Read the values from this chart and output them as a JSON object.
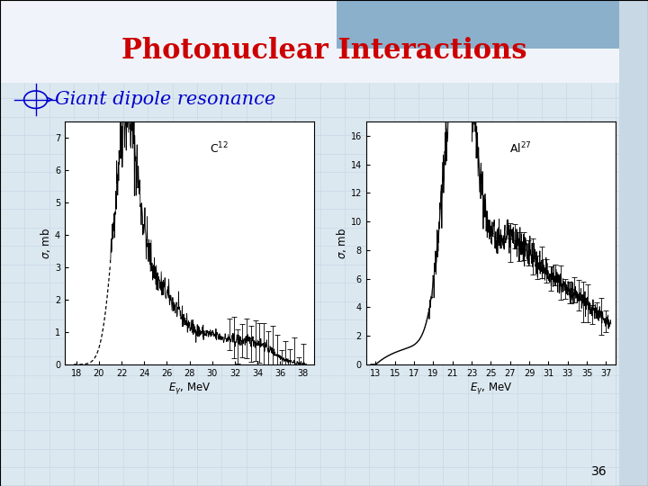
{
  "title": "Photonuclear Interactions",
  "title_color": "#CC0000",
  "title_fontsize": 22,
  "bullet_text": "Giant dipole resonance",
  "bullet_color": "#0000CC",
  "bullet_fontsize": 15,
  "page_number": "36",
  "left_plot_label": "C$^{12}$",
  "right_plot_label": "Al$^{27}$",
  "left_xlabel": "$E_{\\gamma}$, MeV",
  "right_xlabel": "$E_{\\gamma}$, MeV",
  "ylabel": "$\\sigma$, mb",
  "left_xlim": [
    17,
    39
  ],
  "right_xlim": [
    12,
    38
  ],
  "left_ylim": [
    0,
    7.5
  ],
  "right_ylim": [
    0,
    17
  ],
  "left_xticks": [
    18,
    20,
    22,
    24,
    26,
    28,
    30,
    32,
    34,
    36,
    38
  ],
  "right_xticks": [
    13,
    15,
    17,
    19,
    21,
    23,
    25,
    27,
    29,
    31,
    33,
    35,
    37
  ],
  "left_yticks": [
    0,
    1,
    2,
    3,
    4,
    5,
    6,
    7
  ],
  "right_yticks": [
    0,
    2,
    4,
    6,
    8,
    10,
    12,
    14,
    16
  ],
  "grid_color": "#c8d8e8",
  "bg_color": "#dce8f0",
  "header_color": "#f0f4fa",
  "blue_bar_color": "#8ab0cc",
  "right_bar_color": "#c8d8e4"
}
